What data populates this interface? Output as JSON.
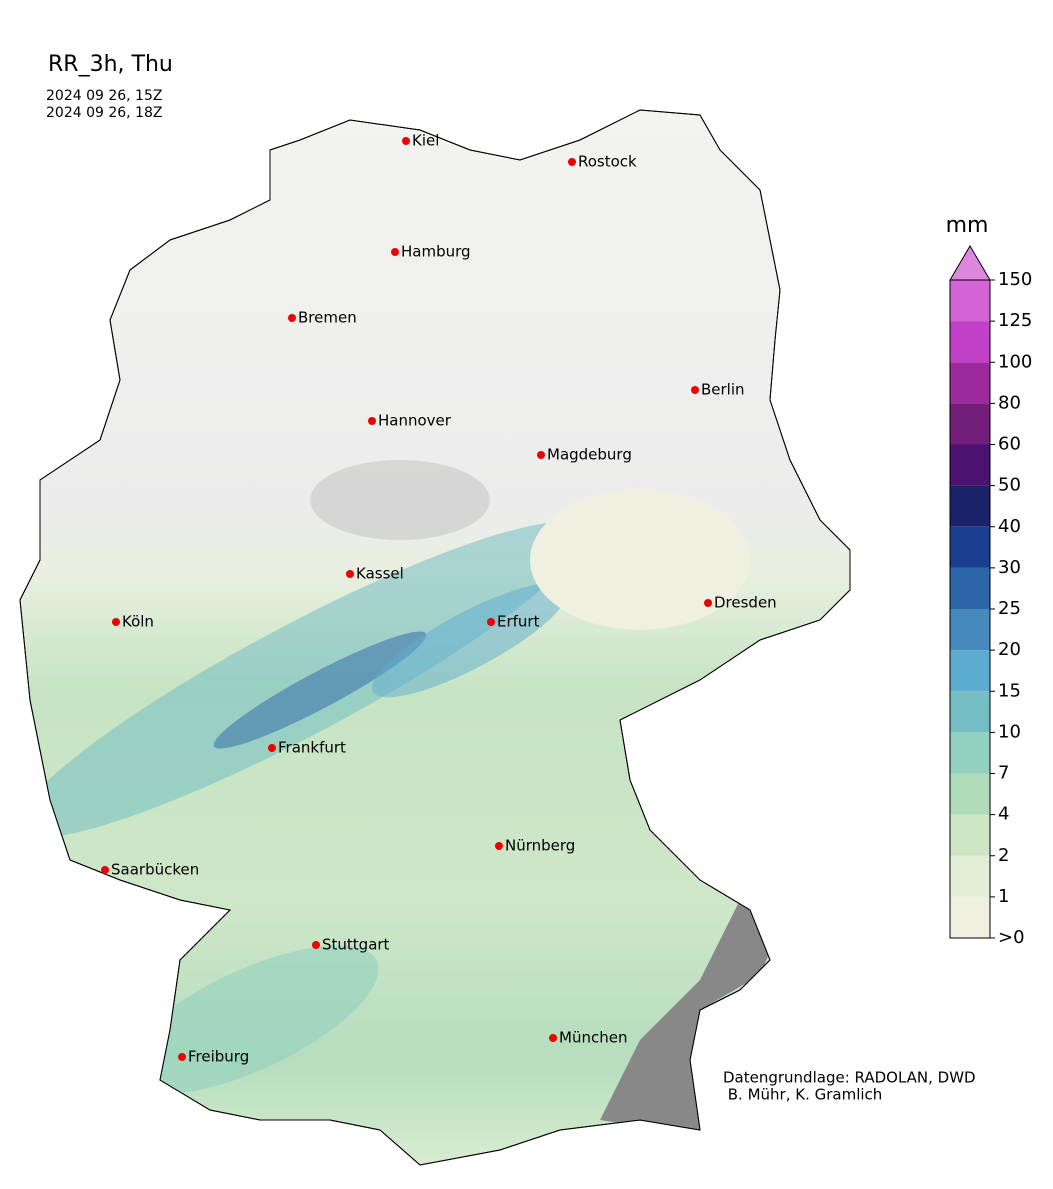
{
  "header": {
    "title": "RR_3h, Thu",
    "valid_from": "2024 09 26, 15Z",
    "valid_to": "2024 09 26, 18Z"
  },
  "cities": [
    "Kiel",
    "Rostock",
    "Hamburg",
    "Bremen",
    "Berlin",
    "Hannover",
    "Magdeburg",
    "Kassel",
    "Dresden",
    "Köln",
    "Erfurt",
    "Frankfurt",
    "Nürnberg",
    "Saarbücken",
    "Stuttgart",
    "Freiburg",
    "München"
  ],
  "legend": {
    "unit": "mm",
    "levels": [
      ">0",
      "1",
      "2",
      "4",
      "7",
      "10",
      "15",
      "20",
      "25",
      "30",
      "40",
      "50",
      "60",
      "80",
      "100",
      "125",
      "150"
    ],
    "colors": [
      "#f0f0e0",
      "#e2efd6",
      "#cde6c6",
      "#b0dcbb",
      "#92d0bf",
      "#74bdc3",
      "#5daccf",
      "#4589bd",
      "#2b66a8",
      "#1a3f91",
      "#1b2268",
      "#4a1370",
      "#731e7a",
      "#9d2a9c",
      "#c040c8",
      "#d463d6"
    ],
    "extend_color": "#dd88dd"
  },
  "credits": [
    "Datengrundlage: RADOLAN, DWD",
    " B. Mühr, K. Gramlich"
  ]
}
